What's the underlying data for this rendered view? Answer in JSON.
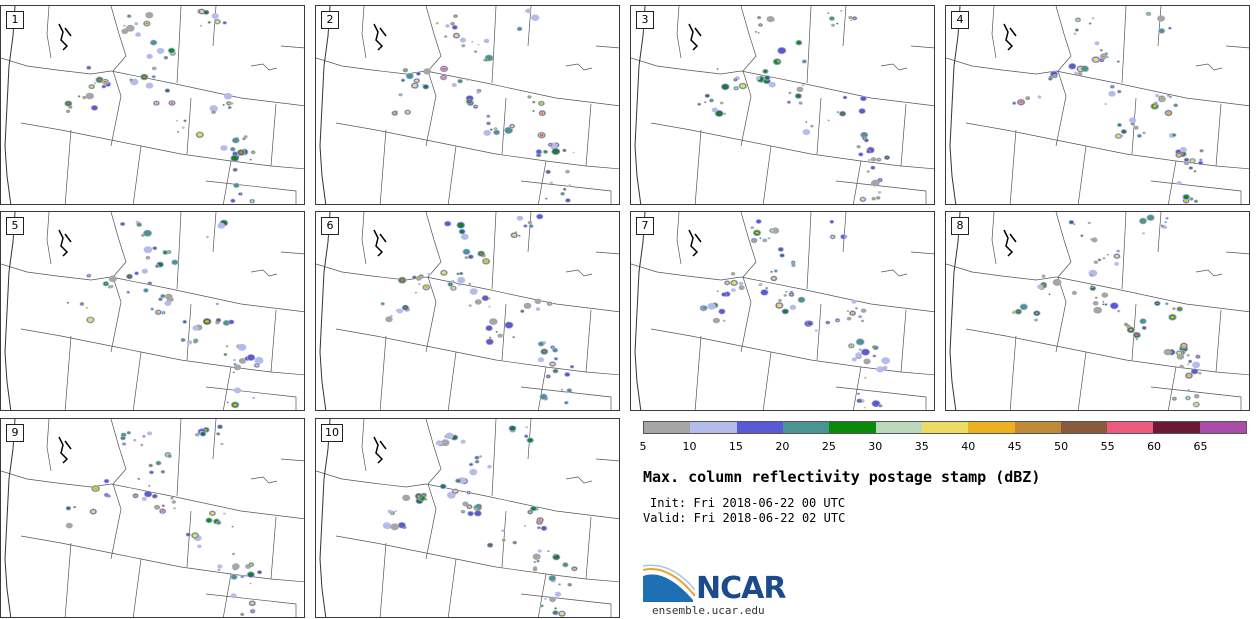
{
  "panels": [
    {
      "label": "1"
    },
    {
      "label": "2"
    },
    {
      "label": "3"
    },
    {
      "label": "4"
    },
    {
      "label": "5"
    },
    {
      "label": "6"
    },
    {
      "label": "7"
    },
    {
      "label": "8"
    },
    {
      "label": "9"
    },
    {
      "label": "10"
    }
  ],
  "colorbar": {
    "ticks": [
      "5",
      "10",
      "15",
      "20",
      "25",
      "30",
      "35",
      "40",
      "45",
      "50",
      "55",
      "60",
      "65"
    ],
    "colors": [
      "#a6a6a6",
      "#b4bcec",
      "#5a5ad7",
      "#4a9494",
      "#0a8a0a",
      "#bcd8bc",
      "#ecdc64",
      "#ecb020",
      "#c08a36",
      "#8a5a3c",
      "#ec5a80",
      "#6a1a36",
      "#a84eaa"
    ]
  },
  "title": "Max. column reflectivity postage stamp (dBZ)",
  "init": "Init: Fri 2018-06-22 00 UTC",
  "valid": "Valid: Fri 2018-06-22 02 UTC",
  "logo": {
    "name": "NCAR",
    "url": "ensemble.ucar.edu"
  }
}
